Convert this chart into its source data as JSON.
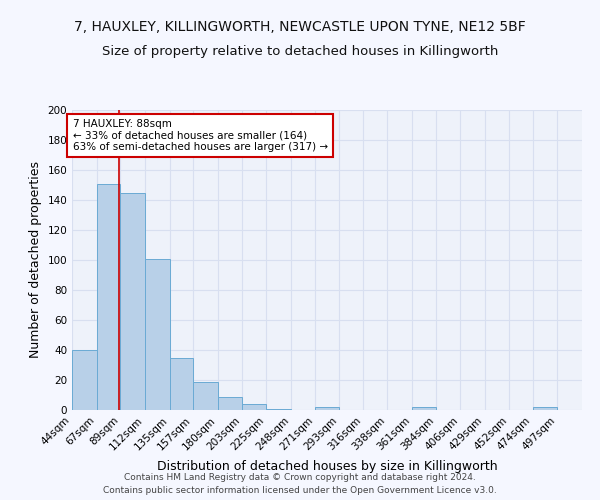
{
  "title_line1": "7, HAUXLEY, KILLINGWORTH, NEWCASTLE UPON TYNE, NE12 5BF",
  "title_line2": "Size of property relative to detached houses in Killingworth",
  "xlabel": "Distribution of detached houses by size in Killingworth",
  "ylabel": "Number of detached properties",
  "bin_labels": [
    "44sqm",
    "67sqm",
    "89sqm",
    "112sqm",
    "135sqm",
    "157sqm",
    "180sqm",
    "203sqm",
    "225sqm",
    "248sqm",
    "271sqm",
    "293sqm",
    "316sqm",
    "338sqm",
    "361sqm",
    "384sqm",
    "406sqm",
    "429sqm",
    "452sqm",
    "474sqm",
    "497sqm"
  ],
  "bin_edges": [
    44,
    67,
    89,
    112,
    135,
    157,
    180,
    203,
    225,
    248,
    271,
    293,
    316,
    338,
    361,
    384,
    406,
    429,
    452,
    474,
    497,
    520
  ],
  "bar_heights": [
    40,
    151,
    145,
    101,
    35,
    19,
    9,
    4,
    1,
    0,
    2,
    0,
    0,
    0,
    2,
    0,
    0,
    0,
    0,
    2,
    0
  ],
  "bar_color": "#b8d0e8",
  "bar_edge_color": "#6aaad4",
  "background_color": "#eef2fa",
  "grid_color": "#d8dff0",
  "property_size": 88,
  "red_line_color": "#cc0000",
  "annotation_line1": "7 HAUXLEY: 88sqm",
  "annotation_line2": "← 33% of detached houses are smaller (164)",
  "annotation_line3": "63% of semi-detached houses are larger (317) →",
  "annotation_box_color": "#ffffff",
  "annotation_box_edge": "#cc0000",
  "ylim": [
    0,
    200
  ],
  "yticks": [
    0,
    20,
    40,
    60,
    80,
    100,
    120,
    140,
    160,
    180,
    200
  ],
  "footer_line1": "Contains HM Land Registry data © Crown copyright and database right 2024.",
  "footer_line2": "Contains public sector information licensed under the Open Government Licence v3.0.",
  "title_fontsize": 10,
  "subtitle_fontsize": 9.5,
  "axis_label_fontsize": 9,
  "tick_fontsize": 7.5,
  "annotation_fontsize": 7.5,
  "footer_fontsize": 6.5
}
